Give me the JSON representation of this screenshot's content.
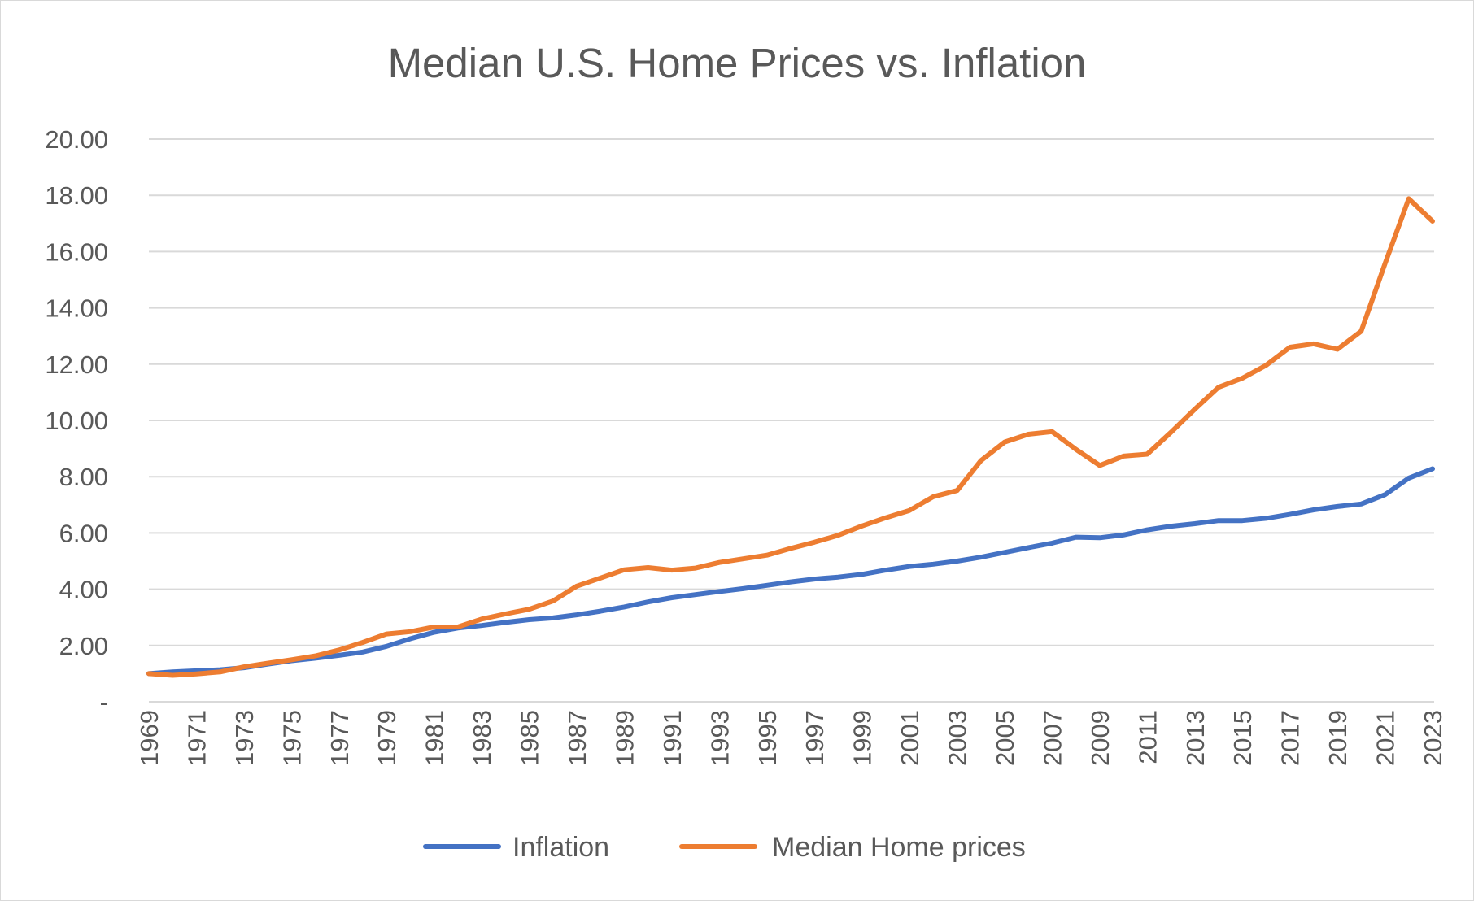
{
  "chart_data": {
    "type": "line",
    "title": "Median U.S. Home Prices vs. Inflation",
    "xlabel": "",
    "ylabel": "",
    "x": [
      1969,
      1970,
      1971,
      1972,
      1973,
      1974,
      1975,
      1976,
      1977,
      1978,
      1979,
      1980,
      1981,
      1982,
      1983,
      1984,
      1985,
      1986,
      1987,
      1988,
      1989,
      1990,
      1991,
      1992,
      1993,
      1994,
      1995,
      1996,
      1997,
      1998,
      1999,
      2000,
      2001,
      2002,
      2003,
      2004,
      2005,
      2006,
      2007,
      2008,
      2009,
      2010,
      2011,
      2012,
      2013,
      2014,
      2015,
      2016,
      2017,
      2018,
      2019,
      2020,
      2021,
      2022,
      2023
    ],
    "x_tick_labels": [
      "1969",
      "1971",
      "1973",
      "1975",
      "1977",
      "1979",
      "1981",
      "1983",
      "1985",
      "1987",
      "1989",
      "1991",
      "1993",
      "1995",
      "1997",
      "1999",
      "2001",
      "2003",
      "2005",
      "2007",
      "2009",
      "2011",
      "2013",
      "2015",
      "2017",
      "2019",
      "2021",
      "2023"
    ],
    "y_tick_labels": [
      "-",
      "2.00",
      "4.00",
      "6.00",
      "8.00",
      "10.00",
      "12.00",
      "14.00",
      "16.00",
      "18.00",
      "20.00"
    ],
    "ylim": [
      0,
      20
    ],
    "grid": true,
    "legend_position": "bottom",
    "series": [
      {
        "name": "Inflation",
        "color": "#4472C4",
        "values": [
          1.0,
          1.06,
          1.1,
          1.14,
          1.21,
          1.34,
          1.46,
          1.55,
          1.65,
          1.77,
          1.97,
          2.24,
          2.47,
          2.62,
          2.71,
          2.82,
          2.92,
          2.98,
          3.09,
          3.22,
          3.37,
          3.55,
          3.7,
          3.81,
          3.92,
          4.02,
          4.14,
          4.26,
          4.36,
          4.43,
          4.53,
          4.68,
          4.81,
          4.89,
          5.0,
          5.14,
          5.31,
          5.48,
          5.64,
          5.85,
          5.83,
          5.93,
          6.11,
          6.24,
          6.33,
          6.44,
          6.44,
          6.52,
          6.66,
          6.82,
          6.94,
          7.03,
          7.36,
          7.95,
          8.28
        ]
      },
      {
        "name": "Median Home prices",
        "color": "#ED7D31",
        "values": [
          1.0,
          0.94,
          0.99,
          1.06,
          1.24,
          1.37,
          1.49,
          1.63,
          1.84,
          2.11,
          2.41,
          2.49,
          2.66,
          2.66,
          2.94,
          3.12,
          3.29,
          3.58,
          4.11,
          4.4,
          4.69,
          4.77,
          4.68,
          4.75,
          4.95,
          5.08,
          5.21,
          5.45,
          5.67,
          5.92,
          6.25,
          6.54,
          6.8,
          7.29,
          7.51,
          8.57,
          9.23,
          9.51,
          9.6,
          8.97,
          8.4,
          8.73,
          8.8,
          9.58,
          10.4,
          11.18,
          11.5,
          11.96,
          12.6,
          12.72,
          12.53,
          13.17,
          15.57,
          17.88,
          17.08
        ]
      }
    ]
  }
}
